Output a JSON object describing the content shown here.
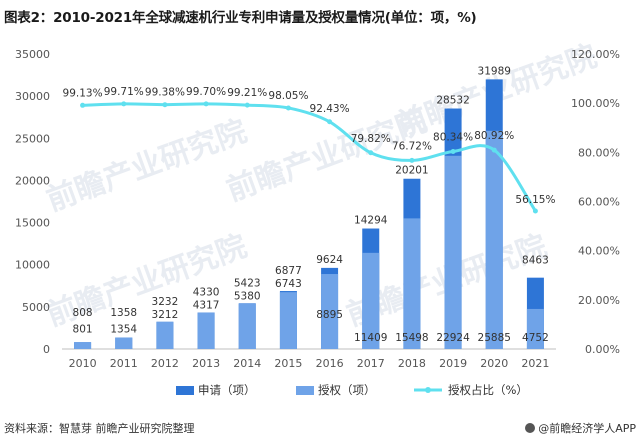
{
  "title": "图表2：2010-2021年全球减速机行业专利申请量及授权量情况(单位：项，%)",
  "footer": {
    "source": "资料来源：智慧芽 前瞻产业研究院整理",
    "brand": "@前瞻经济学人APP"
  },
  "watermark": "前瞻产业研究院",
  "colors": {
    "apply": "#2e75d6",
    "grant": "#6fa3e8",
    "ratio": "#5fe0ef"
  },
  "chart_data": {
    "type": "bar",
    "categories": [
      "2010",
      "2011",
      "2012",
      "2013",
      "2014",
      "2015",
      "2016",
      "2017",
      "2018",
      "2019",
      "2020",
      "2021"
    ],
    "series": [
      {
        "name": "申请（项）",
        "kind": "bar",
        "values": [
          808,
          1358,
          3232,
          4330,
          5423,
          6877,
          9624,
          14294,
          20201,
          28532,
          31989,
          8463
        ]
      },
      {
        "name": "授权（项）",
        "kind": "bar",
        "values": [
          801,
          1354,
          3212,
          4317,
          5380,
          6743,
          8895,
          11409,
          15498,
          22924,
          25885,
          4752
        ]
      },
      {
        "name": "授权占比（%）",
        "kind": "line",
        "axis": "right",
        "values": [
          99.13,
          99.71,
          99.38,
          99.7,
          99.21,
          98.05,
          92.43,
          79.82,
          76.72,
          80.34,
          80.92,
          56.15
        ],
        "labels": [
          "99.13%",
          "99.71%",
          "99.38%",
          "99.70%",
          "99.21%",
          "98.05%",
          "92.43%",
          "79.82%",
          "76.72%",
          "80.34%",
          "80.92%",
          "56.15%"
        ]
      }
    ],
    "ylim_left": [
      0,
      35000
    ],
    "yticks_left": [
      "0",
      "5000",
      "10000",
      "15000",
      "20000",
      "25000",
      "30000",
      "35000"
    ],
    "ylim_right": [
      0,
      120
    ],
    "yticks_right": [
      "0.00%",
      "20.00%",
      "40.00%",
      "60.00%",
      "80.00%",
      "100.00%",
      "120.00%"
    ],
    "legend": [
      "申请（项）",
      "授权（项）",
      "授权占比（%）"
    ]
  }
}
